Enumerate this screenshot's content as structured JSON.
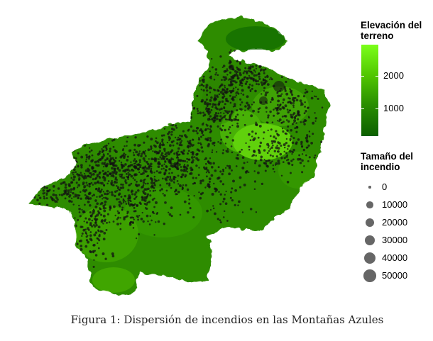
{
  "legend_color": {
    "title_line1": "Elevación del",
    "title_line2": "terreno",
    "ticks": [
      {
        "value": 2000,
        "label": "2000"
      },
      {
        "value": 1000,
        "label": "1000"
      }
    ],
    "range": [
      150,
      2950
    ],
    "color_low": "#0c5f00",
    "color_high": "#7cff1a"
  },
  "legend_size": {
    "title_line1": "Tamaño del",
    "title_line2": "incendio",
    "entries": [
      {
        "value": 0,
        "label": "0"
      },
      {
        "value": 10000,
        "label": "10000"
      },
      {
        "value": 20000,
        "label": "20000"
      },
      {
        "value": 30000,
        "label": "30000"
      },
      {
        "value": 40000,
        "label": "40000"
      },
      {
        "value": 50000,
        "label": "50000"
      }
    ],
    "point_color": "#555555"
  },
  "map": {
    "fire_point_color": "#111111"
  },
  "caption": "Figura 1: Dispersión de incendios en las Montañas Azules"
}
